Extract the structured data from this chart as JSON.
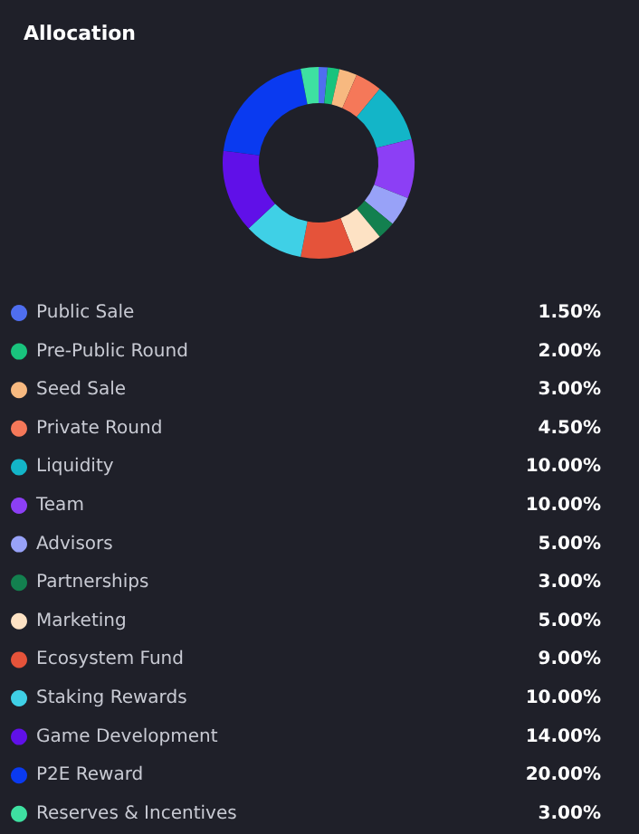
{
  "chart_data": {
    "type": "donut",
    "title": "Allocation",
    "categories": [
      "Public Sale",
      "Pre-Public Round",
      "Seed Sale",
      "Private Round",
      "Liquidity",
      "Team",
      "Advisors",
      "Partnerships",
      "Marketing",
      "Ecosystem Fund",
      "Staking Rewards",
      "Game Development",
      "P2E Reward",
      "Reserves & Incentives"
    ],
    "values": [
      1.5,
      2,
      3,
      4.5,
      10,
      10,
      5,
      3,
      5,
      9,
      10,
      14,
      20,
      3
    ],
    "value_labels": [
      "1.50%",
      "2.00%",
      "3.00%",
      "4.50%",
      "10.00%",
      "10.00%",
      "5.00%",
      "3.00%",
      "5.00%",
      "9.00%",
      "10.00%",
      "14.00%",
      "20.00%",
      "3.00%"
    ],
    "colors": [
      "#4f6ef0",
      "#19c37d",
      "#f7b980",
      "#f57859",
      "#13b5c8",
      "#8c3ff5",
      "#98a2f8",
      "#13804f",
      "#fde2c4",
      "#e5533a",
      "#3fd0e6",
      "#6010e8",
      "#0a3af0",
      "#3ee0a1"
    ],
    "legend": "bottom"
  }
}
